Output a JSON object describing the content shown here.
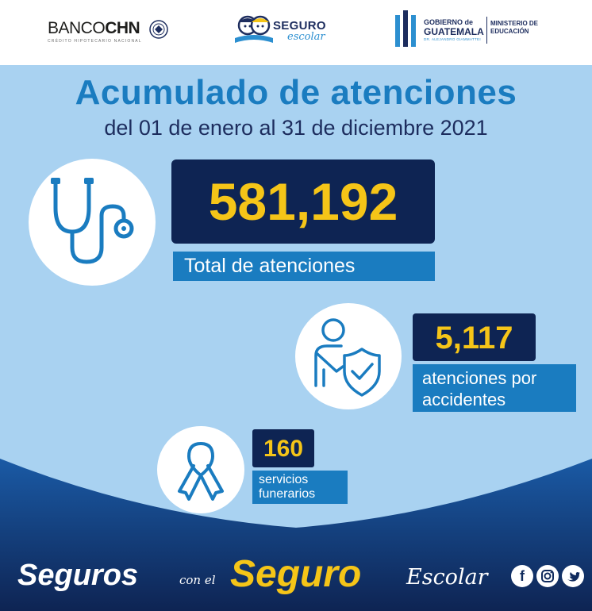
{
  "header": {
    "banco_logo": {
      "brand_light": "BANCO",
      "brand_bold": "CHN",
      "tagline": "CRÉDITO HIPOTECARIO NACIONAL"
    },
    "seguro_logo": {
      "word1": "SEGURO",
      "word2": "escolar"
    },
    "gobierno_logo": {
      "line1": "GOBIERNO de",
      "line2": "GUATEMALA",
      "line3": "DR. ALEJANDRO GIAMMATTEI",
      "ministry1": "MINISTERIO DE",
      "ministry2": "EDUCACIÓN"
    }
  },
  "title": "Acumulado de atenciones",
  "subtitle": "del 01 de enero al 31 de diciembre 2021",
  "stats": [
    {
      "icon": "stethoscope-icon",
      "value": "581,192",
      "label": "Total de atenciones"
    },
    {
      "icon": "injured-person-shield-icon",
      "value": "5,117",
      "label_line1": "atenciones por",
      "label_line2": "accidentes"
    },
    {
      "icon": "ribbon-icon",
      "value": "160",
      "label_line1": "servicios",
      "label_line2": "funerarios"
    }
  ],
  "footer": {
    "word1": "Seguros",
    "word2": "con el",
    "word3": "Seguro",
    "word4": "Escolar",
    "social": [
      "facebook-icon",
      "instagram-icon",
      "twitter-icon"
    ]
  },
  "colors": {
    "background": "#a9d2f1",
    "navy": "#0e2453",
    "accent_blue": "#1a7cc0",
    "yellow": "#f5c518"
  }
}
